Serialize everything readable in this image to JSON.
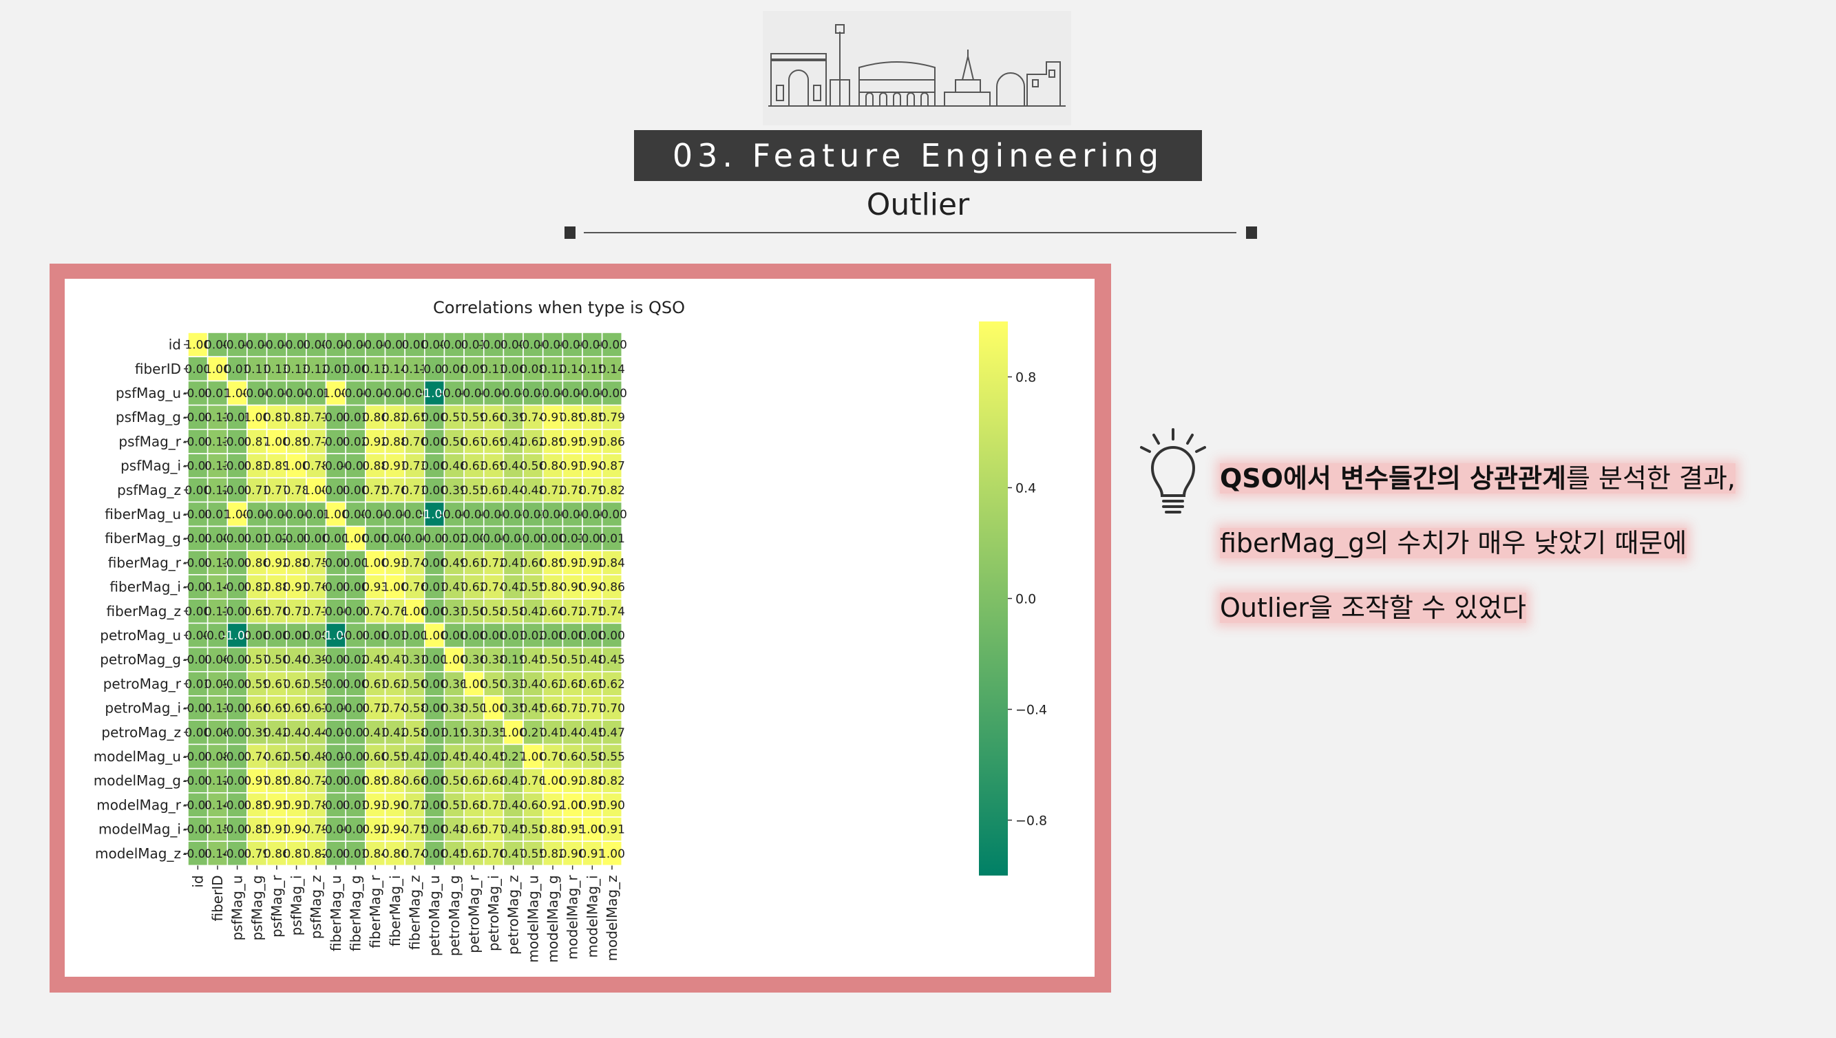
{
  "slide": {
    "section_title": "03. Feature Engineering",
    "subtitle": "Outlier"
  },
  "notes": {
    "line1_bold": "QSO에서 변수들간의 상관관계",
    "line1_rest": "를 분석한 결과,",
    "line2": "fiberMag_g의 수치가 매우 낮았기 때문에",
    "line3": "Outlier을 조작할 수 있었다"
  },
  "icons": {
    "logo": "city-skyline-icon",
    "hint": "lightbulb-icon"
  },
  "chart_data": {
    "type": "heatmap",
    "title": "Correlations when type is QSO",
    "colormap": "summer",
    "labels": [
      "id",
      "fiberID",
      "psfMag_u",
      "psfMag_g",
      "psfMag_r",
      "psfMag_i",
      "psfMag_z",
      "fiberMag_u",
      "fiberMag_g",
      "fiberMag_r",
      "fiberMag_i",
      "fiberMag_z",
      "petroMag_u",
      "petroMag_g",
      "petroMag_r",
      "petroMag_i",
      "petroMag_z",
      "modelMag_u",
      "modelMag_g",
      "modelMag_r",
      "modelMag_i",
      "modelMag_z"
    ],
    "cells": [
      [
        "1.00",
        "0.00",
        "-0.00",
        "-0.00",
        "-0.00",
        "-0.00",
        "0.00",
        "-0.00",
        "-0.00",
        "-0.00",
        "-0.00",
        "0.00",
        "0.00",
        "-0.00",
        "0.01",
        "-0.00",
        "0.00",
        "-0.00",
        "-0.00",
        "-0.00",
        "-0.00",
        "-0.00"
      ],
      [
        "0.00",
        "1.00",
        "0.01",
        "0.11",
        "0.13",
        "0.13",
        "0.12",
        "0.01",
        "0.00",
        "0.13",
        "0.14",
        "0.11",
        "-0.01",
        "0.06",
        "0.09",
        "0.11",
        "0.06",
        "0.08",
        "0.12",
        "0.14",
        "0.15",
        "0.14"
      ],
      [
        "-0.00",
        "0.01",
        "1.00",
        "-0.00",
        "-0.00",
        "-0.00",
        "-0.00",
        "1.00",
        "-0.00",
        "-0.00",
        "-0.00",
        "-0.00",
        "-1.00",
        "-0.00",
        "-0.00",
        "-0.00",
        "-0.01",
        "-0.02",
        "-0.00",
        "-0.00",
        "-0.00",
        "-0.00"
      ],
      [
        "-0.00",
        "0.11",
        "-0.00",
        "1.00",
        "0.87",
        "0.83",
        "0.71",
        "-0.00",
        "0.01",
        "0.86",
        "0.82",
        "0.65",
        "0.00",
        "0.57",
        "0.59",
        "0.66",
        "0.39",
        "0.74",
        "0.97",
        "0.89",
        "0.85",
        "0.79"
      ],
      [
        "-0.00",
        "0.13",
        "-0.00",
        "0.87",
        "1.00",
        "0.89",
        "0.77",
        "-0.00",
        "0.02",
        "0.92",
        "0.88",
        "0.70",
        "0.00",
        "0.50",
        "0.67",
        "0.69",
        "0.42",
        "0.62",
        "0.89",
        "0.95",
        "0.91",
        "0.86"
      ],
      [
        "-0.00",
        "0.13",
        "-0.00",
        "0.83",
        "0.89",
        "1.00",
        "0.78",
        "-0.00",
        "-0.00",
        "0.88",
        "0.91",
        "0.73",
        "0.00",
        "0.46",
        "0.63",
        "0.69",
        "0.44",
        "0.56",
        "0.84",
        "0.91",
        "0.94",
        "0.87"
      ],
      [
        "0.00",
        "0.12",
        "-0.00",
        "0.71",
        "0.77",
        "0.78",
        "1.00",
        "-0.00",
        "0.00",
        "0.75",
        "0.76",
        "0.71",
        "0.00",
        "0.39",
        "0.55",
        "0.61",
        "0.44",
        "0.48",
        "0.72",
        "0.78",
        "0.79",
        "0.82"
      ],
      [
        "-0.00",
        "0.01",
        "1.00",
        "-0.00",
        "-0.00",
        "-0.00",
        "-0.00",
        "1.00",
        "0.00",
        "-0.00",
        "-0.00",
        "-0.00",
        "-1.00",
        "-0.00",
        "-0.00",
        "-0.00",
        "-0.01",
        "-0.02",
        "-0.00",
        "-0.00",
        "-0.00",
        "-0.00"
      ],
      [
        "-0.00",
        "0.00",
        "-0.00",
        "0.01",
        "0.02",
        "-0.00",
        "0.00",
        "0.00",
        "1.00",
        "0.00",
        "0.00",
        "-0.00",
        "-0.00",
        "0.02",
        "0.00",
        "-0.00",
        "-0.01",
        "-0.00",
        "0.00",
        "0.01",
        "-0.00",
        "0.01"
      ],
      [
        "-0.00",
        "0.13",
        "-0.00",
        "0.86",
        "0.92",
        "0.88",
        "0.75",
        "-0.00",
        "0.00",
        "1.00",
        "0.93",
        "0.74",
        "0.00",
        "0.49",
        "0.61",
        "0.72",
        "0.41",
        "0.60",
        "0.89",
        "0.93",
        "0.92",
        "0.84"
      ],
      [
        "-0.00",
        "0.14",
        "-0.00",
        "0.82",
        "0.88",
        "0.91",
        "0.76",
        "-0.00",
        "0.00",
        "0.93",
        "1.00",
        "0.76",
        "0.01",
        "0.47",
        "0.62",
        "0.74",
        "0.42",
        "0.55",
        "0.84",
        "0.90",
        "0.94",
        "0.86"
      ],
      [
        "0.00",
        "0.11",
        "-0.00",
        "0.65",
        "0.70",
        "0.73",
        "0.71",
        "-0.00",
        "-0.00",
        "0.74",
        "0.76",
        "1.00",
        "0.00",
        "0.31",
        "0.50",
        "0.58",
        "0.58",
        "0.42",
        "0.66",
        "0.72",
        "0.75",
        "0.74"
      ],
      [
        "0.00",
        "-0.01",
        "-1.00",
        "0.00",
        "0.00",
        "0.00",
        "0.00",
        "-1.00",
        "-0.00",
        "0.00",
        "0.01",
        "0.00",
        "1.00",
        "0.00",
        "0.00",
        "0.00",
        "0.01",
        "0.02",
        "0.00",
        "0.00",
        "0.00",
        "0.00"
      ],
      [
        "-0.00",
        "0.06",
        "-0.00",
        "0.57",
        "0.50",
        "0.46",
        "0.39",
        "-0.00",
        "0.02",
        "0.49",
        "0.47",
        "0.31",
        "0.00",
        "1.00",
        "0.36",
        "0.38",
        "0.19",
        "0.45",
        "0.56",
        "0.51",
        "0.48",
        "0.45"
      ],
      [
        "0.01",
        "0.09",
        "-0.00",
        "0.59",
        "0.67",
        "0.63",
        "0.55",
        "-0.00",
        "0.00",
        "0.61",
        "0.62",
        "0.50",
        "0.00",
        "0.36",
        "1.00",
        "0.50",
        "0.33",
        "0.44",
        "0.62",
        "0.68",
        "0.65",
        "0.62"
      ],
      [
        "-0.00",
        "0.11",
        "-0.00",
        "0.66",
        "0.69",
        "0.69",
        "0.61",
        "-0.00",
        "-0.00",
        "0.72",
        "0.74",
        "0.58",
        "0.00",
        "0.38",
        "0.50",
        "1.00",
        "0.35",
        "0.45",
        "0.68",
        "0.73",
        "0.77",
        "0.70"
      ],
      [
        "0.00",
        "0.06",
        "-0.01",
        "0.39",
        "0.42",
        "0.44",
        "0.44",
        "-0.01",
        "-0.01",
        "0.41",
        "0.42",
        "0.58",
        "0.01",
        "0.19",
        "0.33",
        "0.35",
        "1.00",
        "0.27",
        "0.41",
        "0.44",
        "0.45",
        "0.47"
      ],
      [
        "-0.00",
        "0.08",
        "-0.02",
        "0.74",
        "0.62",
        "0.56",
        "0.48",
        "-0.02",
        "-0.00",
        "0.60",
        "0.55",
        "0.42",
        "0.02",
        "0.45",
        "0.44",
        "0.45",
        "0.27",
        "1.00",
        "0.76",
        "0.64",
        "0.58",
        "0.55"
      ],
      [
        "-0.00",
        "0.12",
        "-0.00",
        "0.97",
        "0.89",
        "0.84",
        "0.72",
        "-0.00",
        "0.00",
        "0.89",
        "0.84",
        "0.66",
        "0.00",
        "0.56",
        "0.62",
        "0.68",
        "0.41",
        "0.76",
        "1.00",
        "0.92",
        "0.88",
        "0.82"
      ],
      [
        "-0.00",
        "0.14",
        "-0.00",
        "0.89",
        "0.95",
        "0.91",
        "0.78",
        "-0.00",
        "0.01",
        "0.93",
        "0.90",
        "0.72",
        "0.00",
        "0.51",
        "0.68",
        "0.73",
        "0.44",
        "0.64",
        "0.92",
        "1.00",
        "0.95",
        "0.90"
      ],
      [
        "-0.00",
        "0.15",
        "-0.00",
        "0.85",
        "0.91",
        "0.94",
        "0.79",
        "-0.00",
        "-0.00",
        "0.92",
        "0.94",
        "0.75",
        "0.00",
        "0.48",
        "0.65",
        "0.77",
        "0.45",
        "0.58",
        "0.88",
        "0.95",
        "1.00",
        "0.91"
      ],
      [
        "-0.00",
        "0.14",
        "-0.00",
        "0.79",
        "0.86",
        "0.87",
        "0.82",
        "-0.00",
        "0.01",
        "0.84",
        "0.86",
        "0.74",
        "0.00",
        "0.45",
        "0.62",
        "0.70",
        "0.47",
        "0.55",
        "0.82",
        "0.90",
        "0.91",
        "1.00"
      ]
    ],
    "colorbar": {
      "ticks": [
        "0.8",
        "0.4",
        "0.0",
        "−0.4",
        "−0.8"
      ],
      "range": [
        -1,
        1
      ]
    },
    "colors": {
      "low": "#008066",
      "high": "#ffff66"
    }
  }
}
